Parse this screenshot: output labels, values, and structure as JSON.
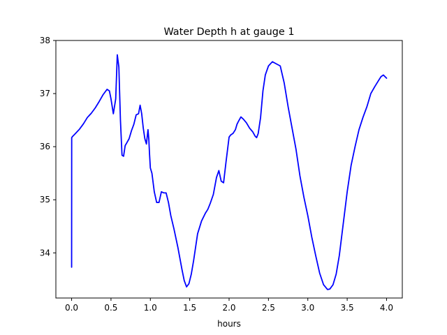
{
  "chart_data": {
    "type": "line",
    "title": "Water Depth h at gauge 1",
    "xlabel": "hours",
    "ylabel": "",
    "xlim": [
      -0.2,
      4.2
    ],
    "ylim": [
      33.15,
      38.0
    ],
    "xticks": [
      0.0,
      0.5,
      1.0,
      1.5,
      2.0,
      2.5,
      3.0,
      3.5,
      4.0
    ],
    "xtick_labels": [
      "0.0",
      "0.5",
      "1.0",
      "1.5",
      "2.0",
      "2.5",
      "3.0",
      "3.5",
      "4.0"
    ],
    "yticks": [
      34,
      35,
      36,
      37,
      38
    ],
    "ytick_labels": [
      "34",
      "35",
      "36",
      "37",
      "38"
    ],
    "grid": false,
    "legend": "none",
    "series": [
      {
        "color": "#0000ff",
        "x": [
          0.0,
          0.001,
          0.01,
          0.05,
          0.1,
          0.15,
          0.2,
          0.25,
          0.3,
          0.35,
          0.4,
          0.45,
          0.48,
          0.5,
          0.53,
          0.56,
          0.58,
          0.6,
          0.62,
          0.64,
          0.66,
          0.68,
          0.7,
          0.73,
          0.76,
          0.79,
          0.82,
          0.85,
          0.87,
          0.89,
          0.91,
          0.93,
          0.95,
          0.97,
          0.98,
          0.99,
          1.0,
          1.02,
          1.05,
          1.08,
          1.11,
          1.14,
          1.17,
          1.2,
          1.23,
          1.26,
          1.3,
          1.35,
          1.4,
          1.43,
          1.46,
          1.49,
          1.52,
          1.55,
          1.6,
          1.65,
          1.7,
          1.73,
          1.76,
          1.8,
          1.84,
          1.87,
          1.9,
          1.93,
          1.96,
          2.0,
          2.02,
          2.05,
          2.08,
          2.1,
          2.12,
          2.15,
          2.18,
          2.22,
          2.26,
          2.3,
          2.33,
          2.35,
          2.37,
          2.4,
          2.43,
          2.46,
          2.5,
          2.55,
          2.6,
          2.65,
          2.7,
          2.75,
          2.8,
          2.85,
          2.9,
          2.95,
          3.0,
          3.05,
          3.1,
          3.15,
          3.2,
          3.25,
          3.28,
          3.32,
          3.36,
          3.4,
          3.45,
          3.5,
          3.55,
          3.6,
          3.65,
          3.7,
          3.75,
          3.8,
          3.85,
          3.9,
          3.93,
          3.96,
          4.0
        ],
        "y": [
          33.73,
          36.17,
          36.19,
          36.25,
          36.33,
          36.43,
          36.55,
          36.63,
          36.73,
          36.85,
          36.98,
          37.08,
          37.05,
          36.9,
          36.62,
          36.9,
          37.73,
          37.5,
          36.5,
          35.84,
          35.82,
          36.02,
          36.07,
          36.15,
          36.3,
          36.42,
          36.6,
          36.62,
          36.78,
          36.62,
          36.35,
          36.15,
          36.05,
          36.32,
          36.15,
          35.85,
          35.6,
          35.5,
          35.15,
          34.95,
          34.95,
          35.15,
          35.13,
          35.13,
          34.95,
          34.7,
          34.45,
          34.1,
          33.7,
          33.48,
          33.36,
          33.42,
          33.6,
          33.86,
          34.36,
          34.6,
          34.75,
          34.82,
          34.93,
          35.1,
          35.42,
          35.55,
          35.35,
          35.32,
          35.7,
          36.18,
          36.22,
          36.25,
          36.32,
          36.42,
          36.48,
          36.56,
          36.52,
          36.45,
          36.35,
          36.28,
          36.2,
          36.17,
          36.25,
          36.55,
          37.05,
          37.35,
          37.52,
          37.6,
          37.56,
          37.52,
          37.2,
          36.75,
          36.35,
          35.95,
          35.45,
          35.05,
          34.7,
          34.3,
          33.95,
          33.62,
          33.4,
          33.31,
          33.32,
          33.4,
          33.6,
          33.95,
          34.55,
          35.15,
          35.65,
          36.0,
          36.32,
          36.55,
          36.75,
          37.0,
          37.13,
          37.25,
          37.32,
          37.35,
          37.29
        ]
      }
    ]
  }
}
